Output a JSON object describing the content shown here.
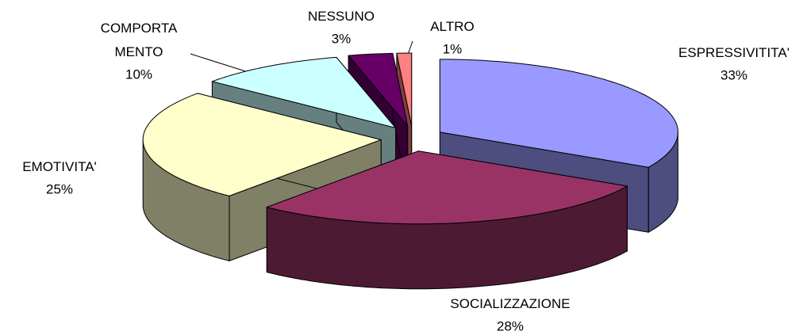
{
  "chart_data": {
    "type": "pie3d",
    "categories": [
      "ESPRESSIVITITA'",
      "SOCIALIZZAZIONE",
      "EMOTIVITA'",
      "COMPORTA\nMENTO",
      "NESSUNO",
      "ALTRO"
    ],
    "values": [
      33,
      28,
      25,
      10,
      3,
      1
    ],
    "value_labels": [
      "33%",
      "28%",
      "25%",
      "10%",
      "3%",
      "1%"
    ],
    "colors": [
      "#9999ff",
      "#993366",
      "#ffffcc",
      "#ccffff",
      "#660066",
      "#ff8080"
    ],
    "side_colors": [
      "#4d4d80",
      "#4d1a33",
      "#808066",
      "#668080",
      "#330033",
      "#804040"
    ]
  }
}
